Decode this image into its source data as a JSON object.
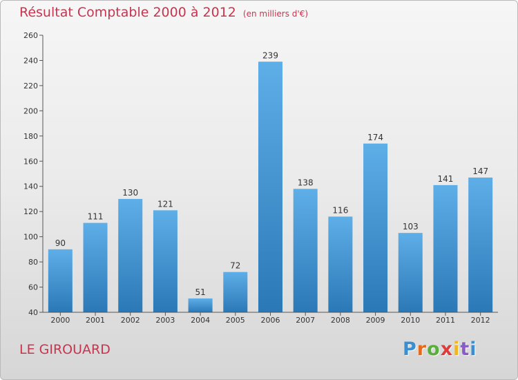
{
  "header": {
    "title": "Résultat Comptable 2000 à 2012",
    "unit": "(en milliers d'€)"
  },
  "footer": {
    "commune": "LE GIROUARD",
    "logo": {
      "text": "Proxiti",
      "colors": [
        "#3b8fd1",
        "#e56a1d",
        "#5aae3c",
        "#e03b3b",
        "#f2b51d",
        "#8a5cc7",
        "#3b8fd1"
      ]
    }
  },
  "colors": {
    "accent": "#c8344e",
    "bar_light": "#5eaee8",
    "bar_dark": "#2b78b6"
  },
  "chart_data": {
    "type": "bar",
    "title": "Résultat Comptable 2000 à 2012",
    "xlabel": "",
    "ylabel": "",
    "categories": [
      "2000",
      "2001",
      "2002",
      "2003",
      "2004",
      "2005",
      "2006",
      "2007",
      "2008",
      "2009",
      "2010",
      "2011",
      "2012"
    ],
    "values": [
      90,
      111,
      130,
      121,
      51,
      72,
      239,
      138,
      116,
      174,
      103,
      141,
      147
    ],
    "ylim": [
      40,
      260
    ],
    "yticks": [
      40,
      60,
      80,
      100,
      120,
      140,
      160,
      180,
      200,
      220,
      240,
      260
    ],
    "grid": false
  }
}
